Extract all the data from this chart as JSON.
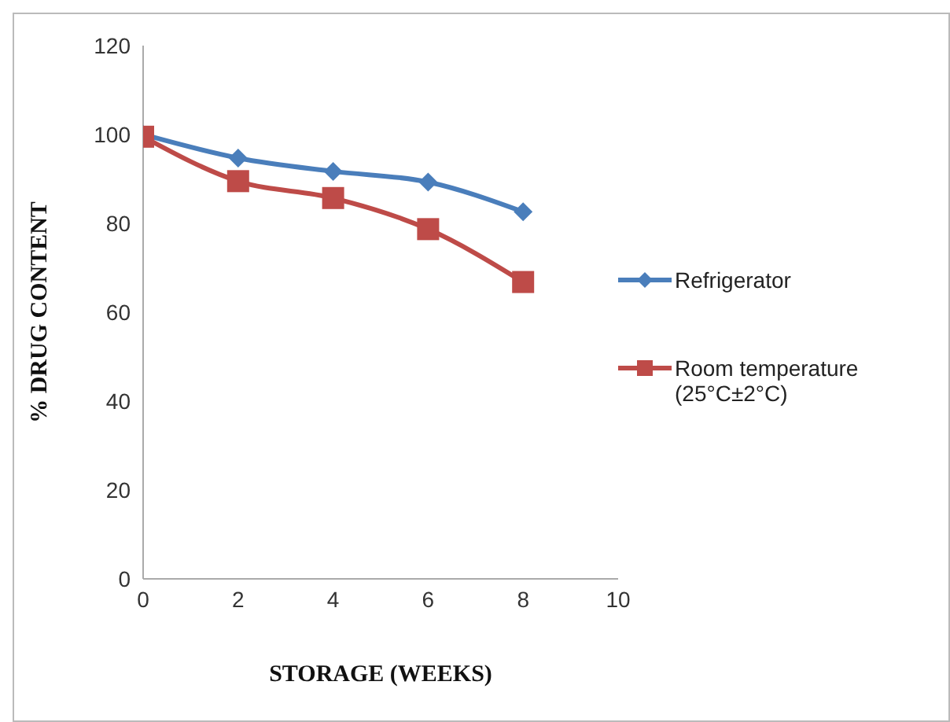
{
  "chart_data": {
    "type": "line",
    "xlabel": "STORAGE (WEEKS)",
    "ylabel": "% DRUG CONTENT",
    "x": [
      0,
      2,
      4,
      6,
      8
    ],
    "series": [
      {
        "name": "Refrigerator",
        "color": "#4a7ebb",
        "marker": "diamond",
        "values": [
          100,
          94.7,
          91.7,
          89.3,
          82.6
        ]
      },
      {
        "name": "Room temperature (25°C±2°C)",
        "color": "#be4b48",
        "marker": "square",
        "values": [
          99.5,
          89.5,
          85.7,
          78.7,
          66.8
        ]
      }
    ],
    "xlim": [
      0,
      10
    ],
    "xticks": [
      0,
      2,
      4,
      6,
      8,
      10
    ],
    "ylim": [
      0,
      120
    ],
    "yticks": [
      0,
      20,
      40,
      60,
      80,
      100,
      120
    ],
    "grid": false,
    "legend": "right"
  }
}
